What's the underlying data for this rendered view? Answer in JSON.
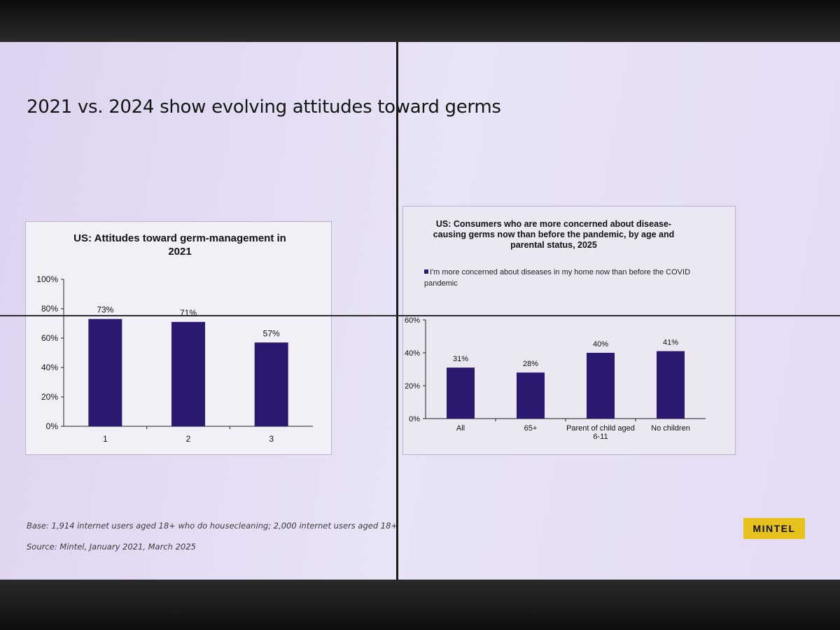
{
  "slide": {
    "title": "2021 vs. 2024 show evolving attitudes toward germs",
    "base": "Base: 1,914 internet users aged 18+ who do housecleaning; 2,000 internet users aged 18+",
    "source": "Source: Mintel, January 2021, March 2025",
    "logo_text": "MINTEL",
    "colors": {
      "bar": "#2b1870",
      "logo": "#e8c21c"
    }
  },
  "chart_data": [
    {
      "type": "bar",
      "title": "US: Attitudes toward germ-management in 2021",
      "categories": [
        "1",
        "2",
        "3"
      ],
      "values": [
        73,
        71,
        57
      ],
      "data_labels": [
        "73%",
        "71%",
        "57%"
      ],
      "yticks": [
        "0%",
        "20%",
        "40%",
        "60%",
        "80%",
        "100%"
      ],
      "ylim": [
        0,
        100
      ],
      "grid": false
    },
    {
      "type": "bar",
      "title": "US: Consumers who are more concerned about disease-causing germs now than before the pandemic, by age and parental status, 2025",
      "legend": "I'm more concerned about diseases in my home now than before the COVID pandemic",
      "legend_position": "top",
      "categories": [
        "All",
        "65+",
        "Parent of child aged 6-11",
        "No children"
      ],
      "values": [
        31,
        28,
        40,
        41
      ],
      "data_labels": [
        "31%",
        "28%",
        "40%",
        "41%"
      ],
      "yticks": [
        "0%",
        "20%",
        "40%",
        "60%"
      ],
      "ylim": [
        0,
        60
      ],
      "grid": false
    }
  ]
}
